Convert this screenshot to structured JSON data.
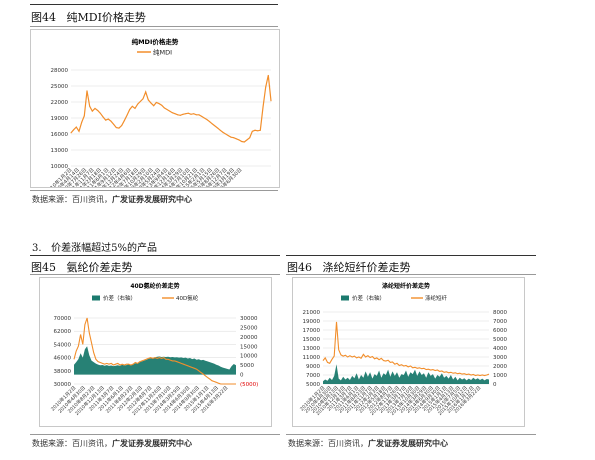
{
  "fig44": {
    "label": "图44",
    "title": "纯MDI价格走势",
    "source_prefix": "数据来源：百川资讯，",
    "source_bold": "广发证券发展研究中心"
  },
  "section": {
    "number": "3.",
    "title": "价差涨幅超过5%的产品"
  },
  "fig45": {
    "label": "图45",
    "title": "氨纶价差走势",
    "source_prefix": "数据来源：百川资讯，",
    "source_bold": "广发证券发展研究中心"
  },
  "fig46": {
    "label": "图46",
    "title": "涤纶短纤价差走势",
    "source_prefix": "数据来源：百川资讯，",
    "source_bold": "广发证券发展研究中心"
  },
  "colors": {
    "orange": "#f28e2b",
    "teal": "#1b7a6e",
    "grid": "#d9d9d9"
  },
  "chart_data": [
    {
      "type": "line",
      "title": "纯MDI价格走势",
      "series": [
        {
          "name": "纯MDI",
          "values": [
            16200,
            16800,
            17300,
            16500,
            18200,
            19400,
            24100,
            21200,
            20300,
            20800,
            20400,
            19900,
            19200,
            18600,
            18800,
            18400,
            17800,
            17200,
            17100,
            17600,
            18500,
            19500,
            20600,
            21200,
            20800,
            21600,
            22100,
            22600,
            23900,
            22400,
            21800,
            21300,
            21900,
            21700,
            21400,
            20900,
            20600,
            20300,
            20000,
            19800,
            19600,
            19500,
            19700,
            19800,
            19900,
            19700,
            19800,
            19600,
            19600,
            19300,
            19000,
            18700,
            18300,
            17900,
            17500,
            17100,
            16700,
            16300,
            16000,
            15700,
            15400,
            15300,
            15100,
            14900,
            14600,
            14500,
            14900,
            15300,
            16500,
            16700,
            16600,
            16700,
            21000,
            24800,
            27000,
            22200
          ]
        }
      ],
      "x_ticks": [
        "2010年1月2日",
        "2010年4月14日",
        "2010年7月26日",
        "2011年11月7日",
        "2011年2月18日",
        "2011年6月1日",
        "2011年9月12日",
        "2012年12月24日",
        "2012年4月6日",
        "2012年7月18日",
        "2012年10月29日",
        "2013年2月10日",
        "2013年5月24日",
        "2013年9月4日",
        "2013年12月16日",
        "2014年3月29日",
        "2014年7月10日",
        "2014年10月21日",
        "2015年2月1日",
        "2015年5月15日",
        "2015年8月26日",
        "2016年12月7日",
        "2016年3月19日",
        "2016年6月30日"
      ],
      "y_ticks": [
        "28000",
        "25000",
        "22000",
        "19000",
        "16000",
        "13000",
        "10000"
      ],
      "ylim": [
        10000,
        28000
      ]
    },
    {
      "type": "area",
      "title": "40D氨纶价差走势",
      "series": [
        {
          "name": "价差（右轴）",
          "axis": "right",
          "values": [
            5200,
            6600,
            8200,
            11300,
            9000,
            13400,
            15000,
            10200,
            7400,
            6600,
            5800,
            5300,
            4900,
            5100,
            4700,
            5000,
            4600,
            4800,
            4500,
            4700,
            4900,
            4600,
            5200,
            4800,
            5000,
            5500,
            5100,
            5400,
            6000,
            5800,
            6500,
            7000,
            7400,
            7800,
            8300,
            8700,
            8900,
            9200,
            9400,
            9600,
            9300,
            9500,
            9300,
            9500,
            9200,
            9300,
            9100,
            9200,
            9000,
            9100,
            8800,
            9000,
            8500,
            8800,
            8200,
            8500,
            7900,
            8100,
            7600,
            7800,
            7300,
            7000,
            6600,
            6200,
            5800,
            5200,
            4800,
            4200,
            3700,
            3400,
            3000,
            2700,
            4500,
            5600,
            4900
          ]
        },
        {
          "name": "40D氨纶",
          "axis": "left",
          "values": [
            45000,
            50000,
            53000,
            60000,
            54000,
            66000,
            70000,
            61000,
            55000,
            49000,
            45000,
            43500,
            43000,
            42500,
            42000,
            42500,
            42000,
            42500,
            41500,
            42000,
            42500,
            41500,
            42000,
            41500,
            42000,
            42000,
            41500,
            42000,
            43000,
            42500,
            43500,
            44000,
            44500,
            45000,
            45500,
            46000,
            45500,
            46000,
            45500,
            46000,
            45500,
            46000,
            45000,
            45000,
            44500,
            44000,
            44000,
            43500,
            43000,
            42500,
            42000,
            41500,
            41000,
            40500,
            40000,
            39500,
            39000,
            38000,
            37000,
            36000,
            35000,
            34000,
            33000,
            32000,
            31500,
            31000,
            30500,
            30000,
            30000,
            30000,
            30000,
            30000,
            30000,
            30000,
            30000
          ]
        }
      ],
      "x_ticks": [
        "2010年1月2日",
        "2010年4月30日",
        "2010年8月23日",
        "2010年12月13日",
        "2011年3月7日",
        "2011年6月1日",
        "2011年8月23日",
        "2012年2月3日",
        "2012年8月7日",
        "2012年11月26日",
        "2013年7月10日",
        "2014年3月29日",
        "2014年6月30日",
        "2014年9月30日",
        "2015年1月1日",
        "2015年4月13日",
        "2016年3月22日"
      ],
      "y_left_ticks": [
        "70000",
        "62000",
        "54000",
        "46000",
        "38000",
        "30000"
      ],
      "y_right_ticks": [
        "30000",
        "25000",
        "20000",
        "15000",
        "10000",
        "5000",
        "0",
        "(5000)"
      ],
      "ylim_left": [
        30000,
        70000
      ],
      "ylim_right": [
        -5000,
        30000
      ]
    },
    {
      "type": "area",
      "title": "涤纶短纤价差走势",
      "series": [
        {
          "name": "价差（右轴）",
          "axis": "right",
          "values": [
            300,
            500,
            350,
            700,
            450,
            900,
            2200,
            600,
            400,
            800,
            500,
            700,
            450,
            900,
            650,
            1200,
            500,
            1000,
            700,
            1400,
            800,
            1300,
            600,
            1100,
            900,
            1500,
            700,
            1200,
            1000,
            1600,
            800,
            1400,
            900,
            1300,
            700,
            1100,
            1000,
            1500,
            800,
            1300,
            1100,
            1600,
            900,
            1400,
            1000,
            1200,
            700,
            1300,
            900,
            1100,
            600,
            1000,
            800,
            1200,
            700,
            900,
            600,
            1000,
            500,
            800,
            400,
            700,
            500,
            650,
            400,
            600,
            450,
            700,
            500,
            650,
            450,
            600,
            400,
            550,
            500
          ]
        },
        {
          "name": "涤纶短纤",
          "axis": "left",
          "values": [
            10200,
            10800,
            9800,
            9600,
            10500,
            11200,
            18800,
            12600,
            11500,
            11200,
            11400,
            11000,
            11300,
            11000,
            11200,
            10800,
            11000,
            10700,
            11600,
            11000,
            11300,
            10900,
            11100,
            10600,
            10800,
            10400,
            10700,
            10200,
            10100,
            10300,
            9800,
            9900,
            9400,
            9600,
            9100,
            9300,
            9000,
            9100,
            8800,
            9000,
            8600,
            8700,
            8500,
            8600,
            8400,
            8500,
            8200,
            8300,
            8100,
            8200,
            8000,
            8100,
            7800,
            7900,
            7600,
            7700,
            7500,
            7600,
            7400,
            7500,
            7300,
            7400,
            7200,
            7300,
            7100,
            7200,
            7000,
            7100,
            6900,
            7000,
            6900,
            7000,
            6900,
            7000,
            7200
          ]
        }
      ],
      "x_ticks": [
        "2010年1月2日",
        "2010年4月30日",
        "2010年8月23日",
        "2010年12月13日",
        "2011年3月7日",
        "2011年6月1日",
        "2011年8月23日",
        "2011年11月7日",
        "2012年2月3日",
        "2012年5月18日",
        "2012年8月7日",
        "2012年11月26日",
        "2013年3月17日",
        "2013年7月10日",
        "2013年10月30日",
        "2014年3月29日",
        "2014年6月30日",
        "2014年9月30日",
        "2015年1月1日",
        "2015年4月13日",
        "2015年7月5日",
        "2015年10月12日",
        "2016年1月12日",
        "2016年3月22日"
      ],
      "y_left_ticks": [
        "21000",
        "19000",
        "17000",
        "15000",
        "13000",
        "11000",
        "9000",
        "7000",
        "5000"
      ],
      "y_right_ticks": [
        "8000",
        "7000",
        "6000",
        "5000",
        "4000",
        "3000",
        "2000",
        "1000",
        "0"
      ],
      "ylim_left": [
        5000,
        21000
      ],
      "ylim_right": [
        0,
        8000
      ]
    }
  ]
}
